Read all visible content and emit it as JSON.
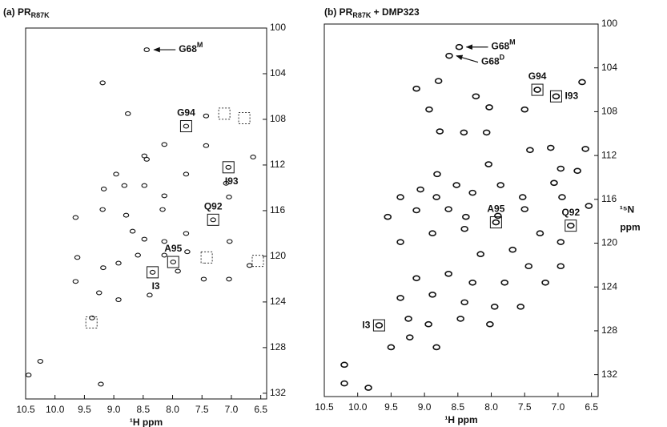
{
  "chart_data": [
    {
      "type": "scatter",
      "title": {
        "text": "(a) PR",
        "sub": "R87K"
      },
      "xlabel": "¹H ppm",
      "x": [
        9.19,
        8.76,
        7.43,
        7.77,
        8.14,
        8.48,
        7.43,
        7.77,
        8.44,
        8.96,
        8.82,
        9.17,
        8.48,
        8.14,
        9.65,
        9.19,
        8.79,
        8.68,
        8.48,
        8.17,
        7.09,
        7.04,
        9.62,
        9.18,
        8.92,
        8.59,
        8.14,
        7.75,
        7.47,
        7.04,
        6.69,
        6.63,
        7.31,
        8.92,
        9.37,
        9.22,
        10.45,
        10.25,
        8.39,
        9.25,
        7.77,
        8.14,
        7.91,
        9.65,
        7.03,
        8.44,
        7.05,
        7.99,
        8.34
      ],
      "y": [
        104.8,
        107.5,
        107.7,
        108.6,
        110.2,
        111.2,
        110.3,
        112.8,
        111.5,
        112.8,
        113.8,
        114.1,
        113.8,
        114.7,
        116.6,
        115.9,
        116.4,
        117.8,
        118.5,
        115.9,
        113.6,
        114.8,
        120.1,
        121.0,
        120.6,
        119.9,
        119.9,
        119.6,
        122.0,
        122.0,
        120.8,
        111.3,
        116.8,
        123.8,
        125.4,
        131.2,
        130.4,
        129.2,
        123.4,
        123.2,
        118.0,
        118.7,
        121.3,
        122.2,
        118.7,
        101.9,
        112.2,
        120.5,
        121.4
      ],
      "xlim": [
        10.5,
        6.4
      ],
      "ylim": [
        100,
        132.5
      ],
      "xticks": [
        10.5,
        {
          "value": 10,
          "label": "10.0"
        },
        9.5,
        {
          "value": 9,
          "label": "9.0"
        },
        8.5,
        {
          "value": 8,
          "label": "8.0"
        },
        7.5,
        {
          "value": 7,
          "label": "7.0"
        },
        6.5
      ],
      "yticks": [
        100,
        104,
        108,
        112,
        116,
        120,
        124,
        128,
        132
      ],
      "arrows": [
        {
          "text": "G68",
          "sup": "M",
          "x": 8.44,
          "y": 101.9
        }
      ],
      "annotations": [
        {
          "text": "G94",
          "x": 7.77,
          "y": 108.6,
          "side": "above"
        },
        {
          "text": "I93",
          "x": 7.05,
          "y": 112.2,
          "side": "below"
        },
        {
          "text": "Q92",
          "x": 7.31,
          "y": 116.8,
          "side": "above"
        },
        {
          "text": "A95",
          "x": 7.99,
          "y": 120.5,
          "side": "above"
        },
        {
          "text": "I3",
          "x": 8.34,
          "y": 121.4,
          "side": "below"
        }
      ],
      "dotted_boxes": {
        "x": [
          7.12,
          6.78,
          7.42,
          6.55,
          9.38
        ],
        "y": [
          107.5,
          107.9,
          120.1,
          120.4,
          125.8
        ]
      }
    },
    {
      "type": "scatter",
      "title": {
        "text": "(b) PR",
        "sub": "R87K",
        "suffix": " + DMP323"
      },
      "xlabel": "¹H ppm",
      "ylabel": [
        "¹⁵N",
        "ppm"
      ],
      "x": [
        8.79,
        6.64,
        9.12,
        8.93,
        8.23,
        8.03,
        7.5,
        8.77,
        8.41,
        8.07,
        7.42,
        7.11,
        6.59,
        6.96,
        6.71,
        7.06,
        8.04,
        8.81,
        9.06,
        9.36,
        8.82,
        8.52,
        8.28,
        7.86,
        7.53,
        6.94,
        6.54,
        9.55,
        9.12,
        8.64,
        8.38,
        7.9,
        7.5,
        7.27,
        6.96,
        9.36,
        8.88,
        8.4,
        8.16,
        7.68,
        7.44,
        6.96,
        9.12,
        8.64,
        8.28,
        7.8,
        7.19,
        9.36,
        8.88,
        8.4,
        7.95,
        7.56,
        9.24,
        8.94,
        8.46,
        8.02,
        9.5,
        8.82,
        9.22,
        10.2,
        10.2,
        9.84,
        8.48,
        8.63,
        7.31,
        7.03,
        6.81,
        7.93,
        9.68
      ],
      "y": [
        105.2,
        105.3,
        105.9,
        107.8,
        106.6,
        107.6,
        107.8,
        109.8,
        109.9,
        109.9,
        111.5,
        111.3,
        111.4,
        113.2,
        113.4,
        114.5,
        112.8,
        113.7,
        115.1,
        115.8,
        115.8,
        114.7,
        115.4,
        114.7,
        115.8,
        115.8,
        116.6,
        117.6,
        117.0,
        116.9,
        117.6,
        117.5,
        116.9,
        119.1,
        119.9,
        119.9,
        119.1,
        118.7,
        121.0,
        120.6,
        122.1,
        122.1,
        123.2,
        122.8,
        123.6,
        123.6,
        123.6,
        125.0,
        124.7,
        125.4,
        125.8,
        125.8,
        126.9,
        127.4,
        126.9,
        127.4,
        129.5,
        129.5,
        128.6,
        131.1,
        132.8,
        133.2,
        102.1,
        102.9,
        106.0,
        106.6,
        118.4,
        118.1,
        127.5
      ],
      "xlim": [
        10.5,
        6.4
      ],
      "ylim": [
        100,
        134
      ],
      "xticks": [
        10.5,
        {
          "value": 10,
          "label": "10.0"
        },
        9.5,
        {
          "value": 9,
          "label": "9.0"
        },
        8.5,
        {
          "value": 8,
          "label": "8.0"
        },
        7.5,
        {
          "value": 7,
          "label": "7.0"
        },
        6.5
      ],
      "yticks": [
        100,
        104,
        108,
        112,
        116,
        120,
        124,
        128,
        132
      ],
      "arrows": [
        {
          "text": "G68",
          "sup": "M",
          "x": 8.48,
          "y": 102.1
        },
        {
          "text": "G68",
          "sup": "D",
          "x": 8.63,
          "y": 102.9
        }
      ],
      "annotations": [
        {
          "text": "G94",
          "x": 7.31,
          "y": 106.0,
          "side": "above"
        },
        {
          "text": "I93",
          "x": 7.03,
          "y": 106.6,
          "side": "right"
        },
        {
          "text": "Q92",
          "x": 6.81,
          "y": 118.4,
          "side": "above"
        },
        {
          "text": "A95",
          "x": 7.93,
          "y": 118.1,
          "side": "above"
        },
        {
          "text": "I3",
          "x": 9.68,
          "y": 127.5,
          "side": "left"
        }
      ]
    }
  ]
}
